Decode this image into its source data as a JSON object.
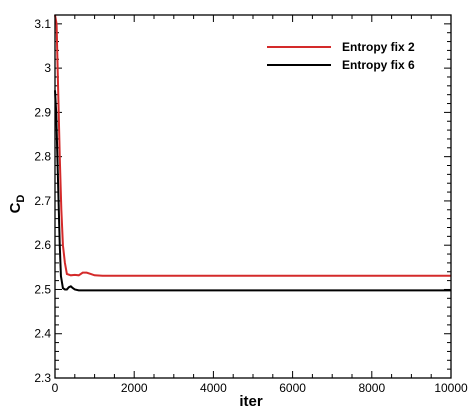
{
  "chart_data": {
    "type": "line",
    "xlabel": "iter",
    "ylabel": "C",
    "ylabel_subscript": "D",
    "xlim": [
      0,
      10000
    ],
    "ylim": [
      2.3,
      3.12
    ],
    "xticks": [
      0,
      2000,
      4000,
      6000,
      8000,
      10000
    ],
    "yticks": [
      2.3,
      2.4,
      2.5,
      2.6,
      2.7,
      2.8,
      2.9,
      3,
      3.1
    ],
    "grid": false,
    "legend_position": "top-right",
    "series": [
      {
        "name": "Entropy fix 2",
        "color": "#d42a2a",
        "x": [
          0,
          40,
          80,
          120,
          160,
          200,
          250,
          300,
          400,
          500,
          600,
          700,
          800,
          900,
          1000,
          1200,
          1500,
          2000,
          4000,
          6000,
          8000,
          10000
        ],
        "y": [
          3.12,
          3.1,
          2.95,
          2.8,
          2.68,
          2.6,
          2.56,
          2.535,
          2.532,
          2.533,
          2.532,
          2.538,
          2.538,
          2.535,
          2.532,
          2.531,
          2.531,
          2.531,
          2.531,
          2.531,
          2.531,
          2.531
        ]
      },
      {
        "name": "Entropy fix 6",
        "color": "#000000",
        "x": [
          0,
          30,
          60,
          90,
          120,
          150,
          200,
          250,
          300,
          350,
          400,
          450,
          500,
          600,
          700,
          800,
          1000,
          2000,
          4000,
          6000,
          8000,
          10000
        ],
        "y": [
          2.95,
          2.9,
          2.8,
          2.7,
          2.6,
          2.53,
          2.503,
          2.5,
          2.5,
          2.505,
          2.507,
          2.503,
          2.5,
          2.498,
          2.498,
          2.498,
          2.498,
          2.498,
          2.498,
          2.498,
          2.498,
          2.498
        ]
      }
    ]
  }
}
